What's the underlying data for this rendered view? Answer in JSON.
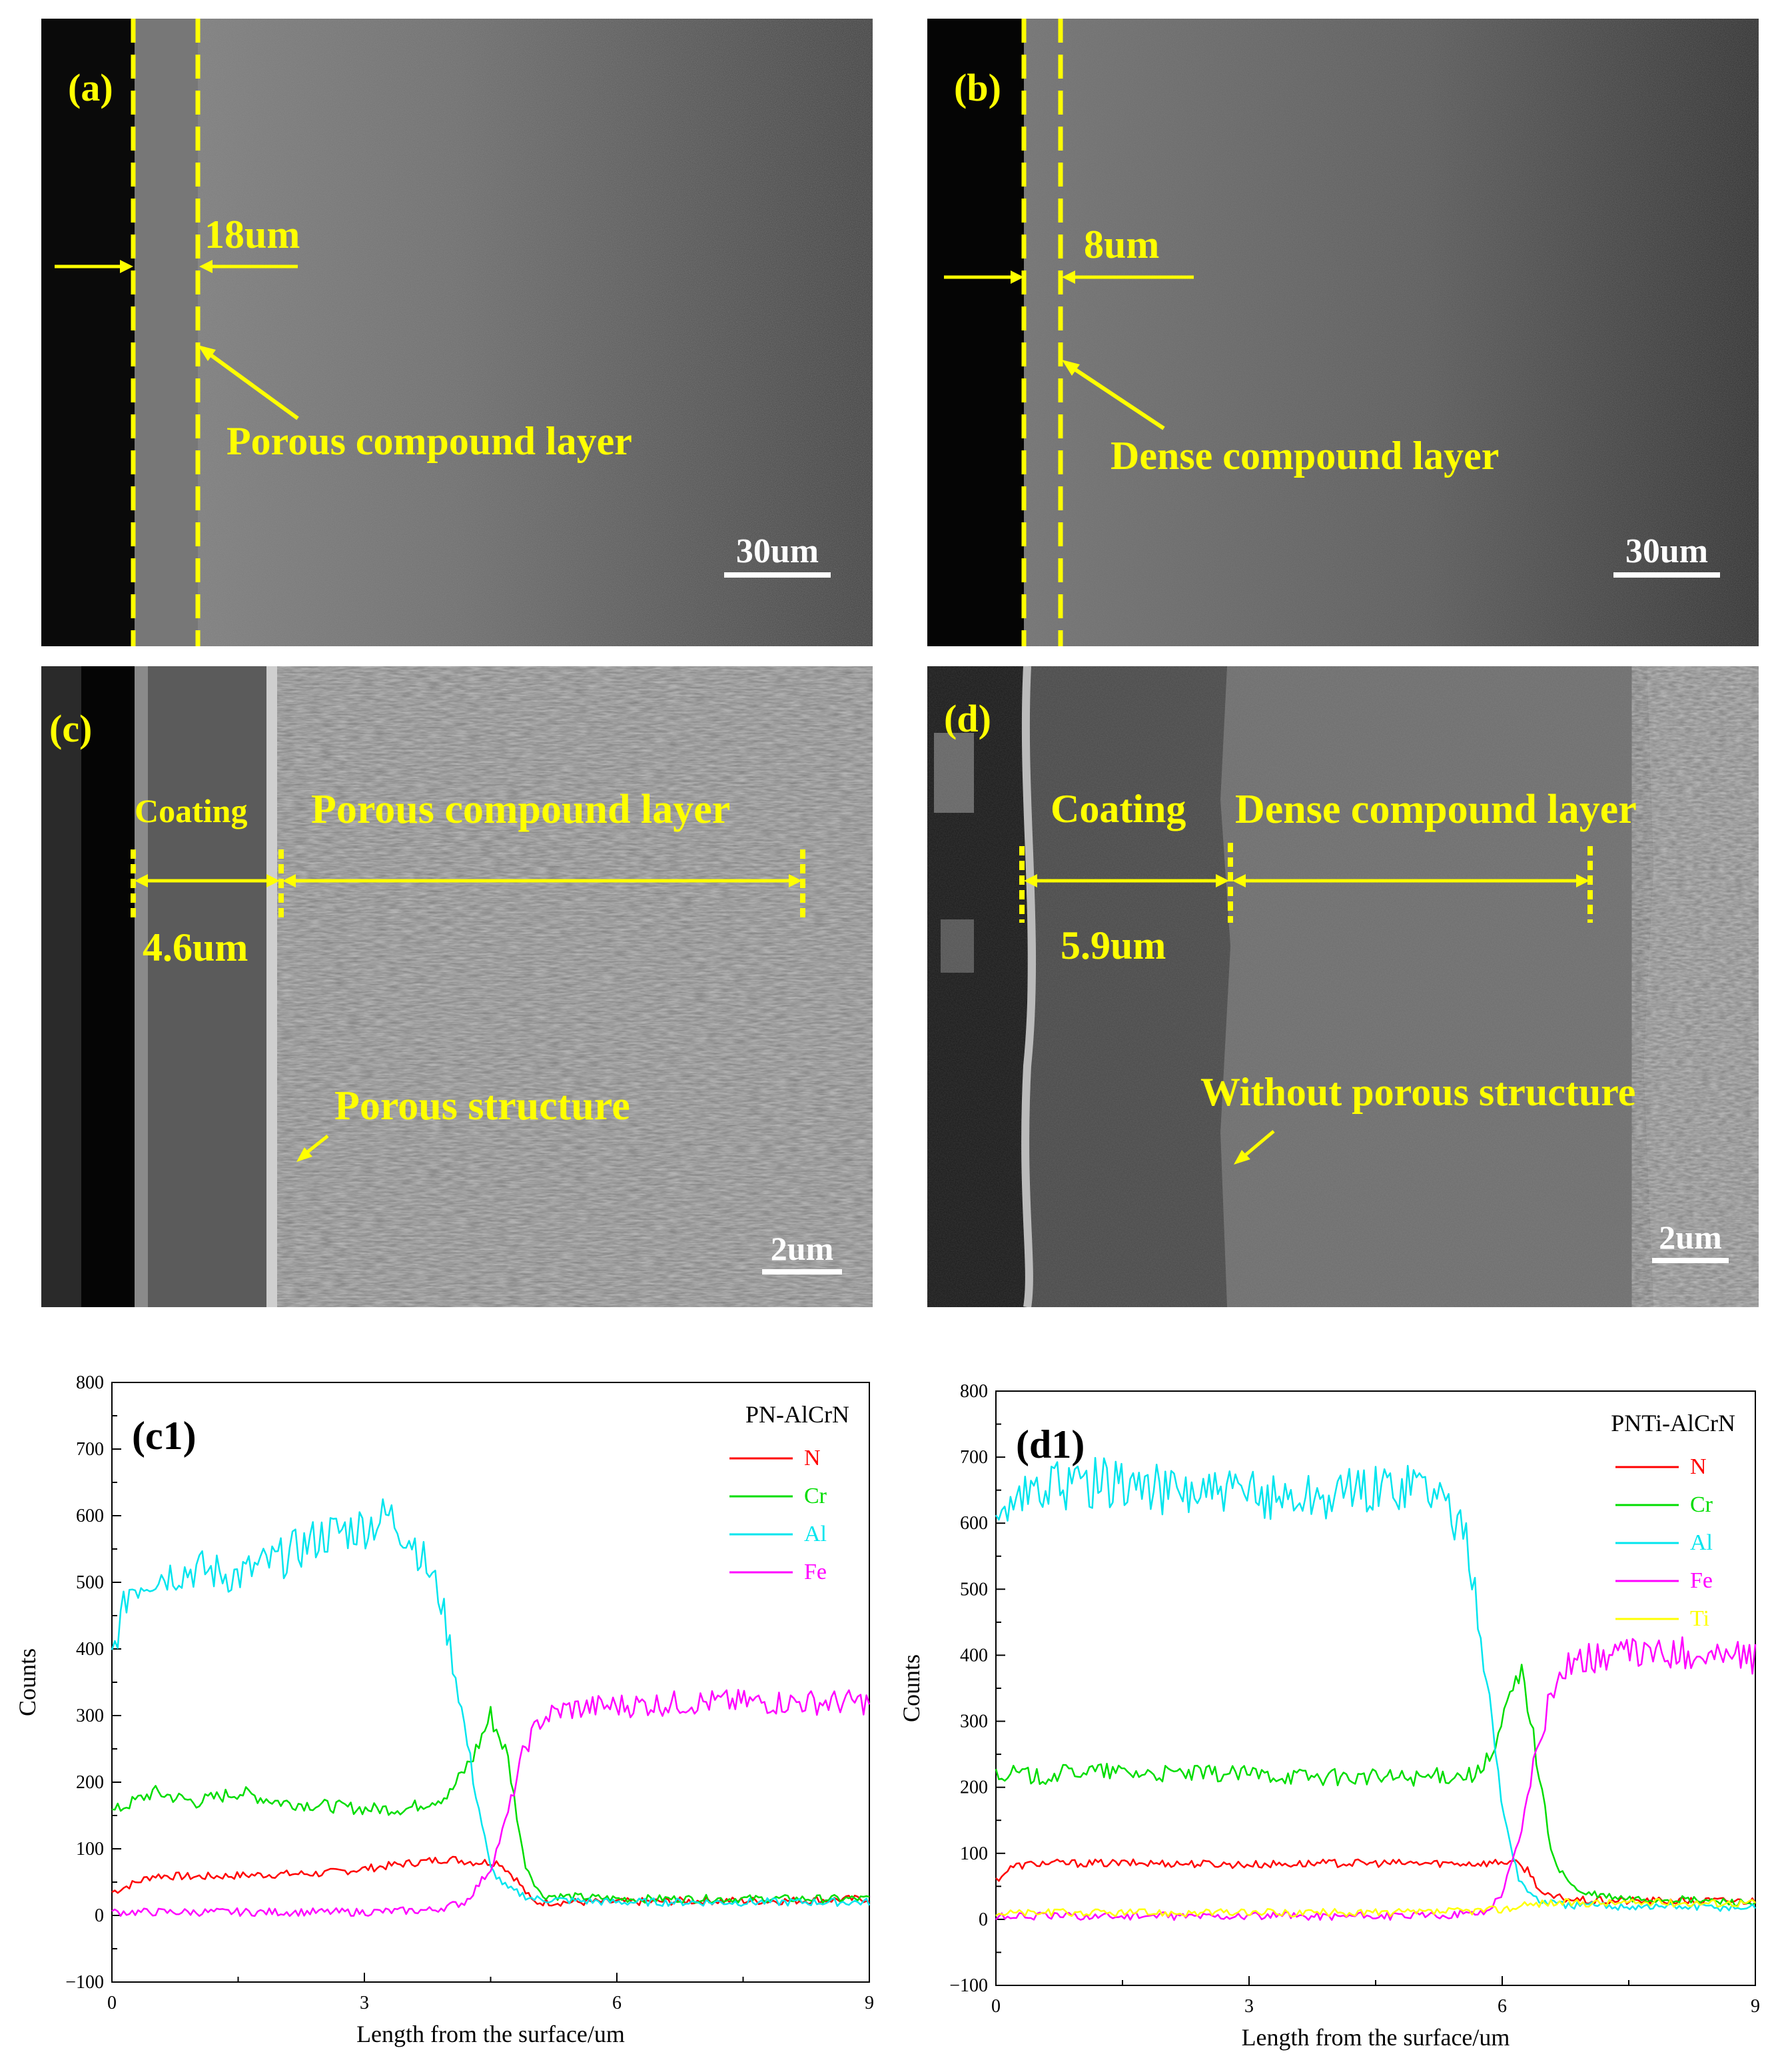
{
  "panels": {
    "a": {
      "label": "(a)",
      "thickness": "18um",
      "annotation": "Porous compound layer",
      "scale": "30um"
    },
    "b": {
      "label": "(b)",
      "thickness": "8um",
      "annotation": "Dense compound layer",
      "scale": "30um"
    },
    "c": {
      "label": "(c)",
      "coating_label": "Coating",
      "layer_label": "Porous compound layer",
      "coating_thickness": "4.6um",
      "annotation": "Porous structure",
      "scale": "2um"
    },
    "d": {
      "label": "(d)",
      "coating_label": "Coating",
      "layer_label": "Dense compound layer",
      "coating_thickness": "5.9um",
      "annotation": "Without porous structure",
      "scale": "2um"
    }
  },
  "colors": {
    "N": "#ff0000",
    "Cr": "#00dd00",
    "Al": "#00e5ee",
    "Fe": "#ff00ff",
    "Ti": "#ffff00",
    "annotation": "#ffff00"
  },
  "chart_data": [
    {
      "type": "line",
      "panel_label": "(c1)",
      "legend_title": "PN-AlCrN",
      "legend_position": "top-right",
      "xlabel": "Length from the surface/um",
      "ylabel": "Counts",
      "xlim": [
        0,
        9
      ],
      "ylim": [
        -100,
        800
      ],
      "xticks": [
        "0",
        "3",
        "6",
        "9"
      ],
      "yticks": [
        "−100",
        "0",
        "100",
        "200",
        "300",
        "400",
        "500",
        "600",
        "700",
        "800"
      ],
      "grid": false,
      "series": [
        {
          "name": "N",
          "x": [
            0,
            0.5,
            1.0,
            1.5,
            2.0,
            2.5,
            3.0,
            3.5,
            4.0,
            4.3,
            4.6,
            4.8,
            5.0,
            5.5,
            6.0,
            7.0,
            8.0,
            9.0
          ],
          "y": [
            35,
            60,
            58,
            60,
            62,
            63,
            70,
            78,
            85,
            80,
            80,
            55,
            20,
            20,
            20,
            22,
            22,
            25
          ]
        },
        {
          "name": "Cr",
          "x": [
            0,
            0.5,
            1.0,
            1.5,
            2.0,
            2.5,
            3.0,
            3.5,
            4.0,
            4.3,
            4.5,
            4.7,
            4.9,
            5.1,
            5.5,
            6.0,
            7.0,
            8.0,
            9.0
          ],
          "y": [
            155,
            185,
            170,
            185,
            170,
            165,
            160,
            160,
            180,
            240,
            300,
            240,
            80,
            30,
            28,
            25,
            25,
            25,
            25
          ]
        },
        {
          "name": "Al",
          "x": [
            0,
            0.2,
            0.5,
            1.0,
            1.5,
            2.0,
            2.5,
            3.0,
            3.3,
            3.6,
            3.9,
            4.1,
            4.3,
            4.5,
            4.7,
            5.0,
            5.5,
            6.0,
            7.0,
            8.0,
            9.0
          ],
          "y": [
            390,
            490,
            510,
            520,
            510,
            535,
            570,
            585,
            600,
            560,
            480,
            350,
            200,
            70,
            40,
            25,
            22,
            20,
            20,
            20,
            20
          ]
        },
        {
          "name": "Fe",
          "x": [
            0,
            0.5,
            1.0,
            2.0,
            3.0,
            3.8,
            4.2,
            4.5,
            4.7,
            4.9,
            5.1,
            5.4,
            6.0,
            7.0,
            8.0,
            9.0
          ],
          "y": [
            5,
            5,
            5,
            5,
            5,
            8,
            20,
            70,
            150,
            250,
            295,
            310,
            315,
            320,
            320,
            320
          ]
        }
      ]
    },
    {
      "type": "line",
      "panel_label": "(d1)",
      "legend_title": "PNTi-AlCrN",
      "legend_position": "top-right",
      "xlabel": "Length from the surface/um",
      "ylabel": "Counts",
      "xlim": [
        0,
        9
      ],
      "ylim": [
        -100,
        800
      ],
      "xticks": [
        "0",
        "3",
        "6",
        "9"
      ],
      "yticks": [
        "−100",
        "0",
        "100",
        "200",
        "300",
        "400",
        "500",
        "600",
        "700",
        "800"
      ],
      "grid": false,
      "series": [
        {
          "name": "N",
          "x": [
            0,
            0.2,
            0.5,
            1.0,
            2.0,
            3.0,
            4.0,
            5.0,
            5.8,
            6.1,
            6.3,
            6.5,
            7.0,
            8.0,
            9.0
          ],
          "y": [
            60,
            80,
            85,
            85,
            85,
            83,
            85,
            85,
            85,
            88,
            75,
            35,
            28,
            28,
            28
          ]
        },
        {
          "name": "Cr",
          "x": [
            0,
            0.5,
            1.0,
            2.0,
            3.0,
            4.0,
            5.0,
            5.7,
            5.9,
            6.1,
            6.25,
            6.4,
            6.6,
            6.9,
            7.5,
            8.0,
            9.0
          ],
          "y": [
            225,
            215,
            225,
            220,
            220,
            215,
            215,
            220,
            250,
            340,
            375,
            250,
            90,
            40,
            30,
            30,
            25
          ]
        },
        {
          "name": "Al",
          "x": [
            0,
            0.2,
            0.5,
            1.0,
            1.5,
            2.0,
            3.0,
            4.0,
            5.0,
            5.3,
            5.6,
            5.8,
            6.0,
            6.2,
            6.4,
            6.7,
            7.5,
            9.0
          ],
          "y": [
            580,
            620,
            650,
            660,
            660,
            650,
            640,
            640,
            665,
            640,
            560,
            380,
            170,
            60,
            30,
            22,
            20,
            18
          ]
        },
        {
          "name": "Fe",
          "x": [
            0,
            1.0,
            2.0,
            3.0,
            4.0,
            5.0,
            5.8,
            6.0,
            6.2,
            6.4,
            6.6,
            6.8,
            7.2,
            8.0,
            9.0
          ],
          "y": [
            5,
            5,
            5,
            5,
            5,
            5,
            10,
            40,
            120,
            250,
            350,
            390,
            400,
            405,
            395
          ]
        },
        {
          "name": "Ti",
          "x": [
            0,
            1.0,
            2.0,
            3.0,
            4.0,
            5.0,
            6.0,
            6.5,
            7.0,
            8.0,
            9.0
          ],
          "y": [
            10,
            10,
            10,
            10,
            10,
            10,
            15,
            25,
            25,
            25,
            25
          ]
        }
      ]
    }
  ]
}
